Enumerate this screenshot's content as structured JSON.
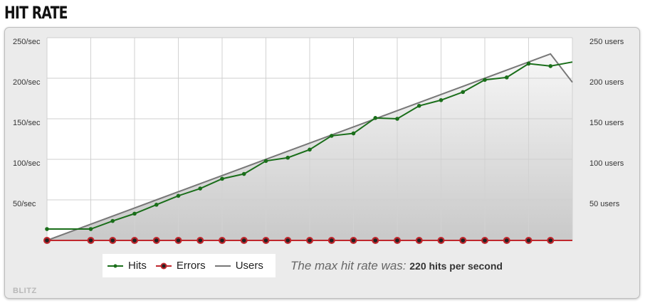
{
  "page": {
    "title": "HIT RATE",
    "watermark": "BLITZ"
  },
  "legend": {
    "hits_label": "Hits",
    "errors_label": "Errors",
    "users_label": "Users"
  },
  "summary": {
    "prefix": "The max hit rate was:",
    "value": "220 hits per second"
  },
  "colors": {
    "hits": "#1a6e1a",
    "errors": "#c0272d",
    "users": "#777777",
    "plot_top": "#f7f7f7",
    "plot_bottom": "#c9c9c9"
  },
  "chart_data": {
    "type": "line",
    "x": [
      0,
      1,
      2,
      3,
      4,
      5,
      6,
      7,
      8,
      9,
      10,
      11,
      12,
      13,
      14,
      15,
      16,
      17,
      18,
      19,
      20,
      21,
      22,
      23,
      24
    ],
    "y_left": {
      "ticks": [
        "50/sec",
        "100/sec",
        "150/sec",
        "200/sec",
        "250/sec"
      ],
      "tick_values": [
        50,
        100,
        150,
        200,
        250
      ],
      "ylim": [
        0,
        250
      ]
    },
    "y_right": {
      "ticks": [
        "50 users",
        "100 users",
        "150 users",
        "200 users",
        "250 users"
      ],
      "tick_values": [
        50,
        100,
        150,
        200,
        250
      ],
      "ylim": [
        0,
        250
      ]
    },
    "grid": true,
    "series": [
      {
        "name": "Hits",
        "axis": "left",
        "marker": "dot",
        "points": [
          [
            0,
            14
          ],
          [
            2,
            14
          ],
          [
            3,
            24
          ],
          [
            4,
            33
          ],
          [
            5,
            44
          ],
          [
            6,
            55
          ],
          [
            7,
            64
          ],
          [
            8,
            76
          ],
          [
            9,
            82
          ],
          [
            10,
            98
          ],
          [
            11,
            102
          ],
          [
            12,
            112
          ],
          [
            13,
            129
          ],
          [
            14,
            132
          ],
          [
            15,
            151
          ],
          [
            16,
            150
          ],
          [
            17,
            166
          ],
          [
            18,
            173
          ],
          [
            19,
            183
          ],
          [
            20,
            198
          ],
          [
            21,
            201
          ],
          [
            22,
            218
          ],
          [
            23,
            215
          ],
          [
            24,
            220
          ]
        ]
      },
      {
        "name": "Errors",
        "axis": "left",
        "marker": "ring",
        "points": [
          [
            0,
            0
          ],
          [
            2,
            0
          ],
          [
            3,
            0
          ],
          [
            4,
            0
          ],
          [
            5,
            0
          ],
          [
            6,
            0
          ],
          [
            7,
            0
          ],
          [
            8,
            0
          ],
          [
            9,
            0
          ],
          [
            10,
            0
          ],
          [
            11,
            0
          ],
          [
            12,
            0
          ],
          [
            13,
            0
          ],
          [
            14,
            0
          ],
          [
            15,
            0
          ],
          [
            16,
            0
          ],
          [
            17,
            0
          ],
          [
            18,
            0
          ],
          [
            19,
            0
          ],
          [
            20,
            0
          ],
          [
            21,
            0
          ],
          [
            22,
            0
          ],
          [
            23,
            0
          ]
        ]
      },
      {
        "name": "Users",
        "axis": "right",
        "marker": "none",
        "area": true,
        "points": [
          [
            0,
            0
          ],
          [
            1,
            10
          ],
          [
            2,
            20
          ],
          [
            3,
            30
          ],
          [
            4,
            40
          ],
          [
            5,
            50
          ],
          [
            6,
            60
          ],
          [
            7,
            70
          ],
          [
            8,
            80
          ],
          [
            9,
            90
          ],
          [
            10,
            100
          ],
          [
            11,
            110
          ],
          [
            12,
            120
          ],
          [
            13,
            130
          ],
          [
            14,
            140
          ],
          [
            15,
            150
          ],
          [
            16,
            160
          ],
          [
            17,
            170
          ],
          [
            18,
            180
          ],
          [
            19,
            190
          ],
          [
            20,
            200
          ],
          [
            21,
            210
          ],
          [
            22,
            220
          ],
          [
            23,
            230
          ],
          [
            24,
            195
          ]
        ]
      }
    ],
    "legend_position": "bottom-left",
    "title": "",
    "xlabel": "",
    "ylabel": ""
  }
}
